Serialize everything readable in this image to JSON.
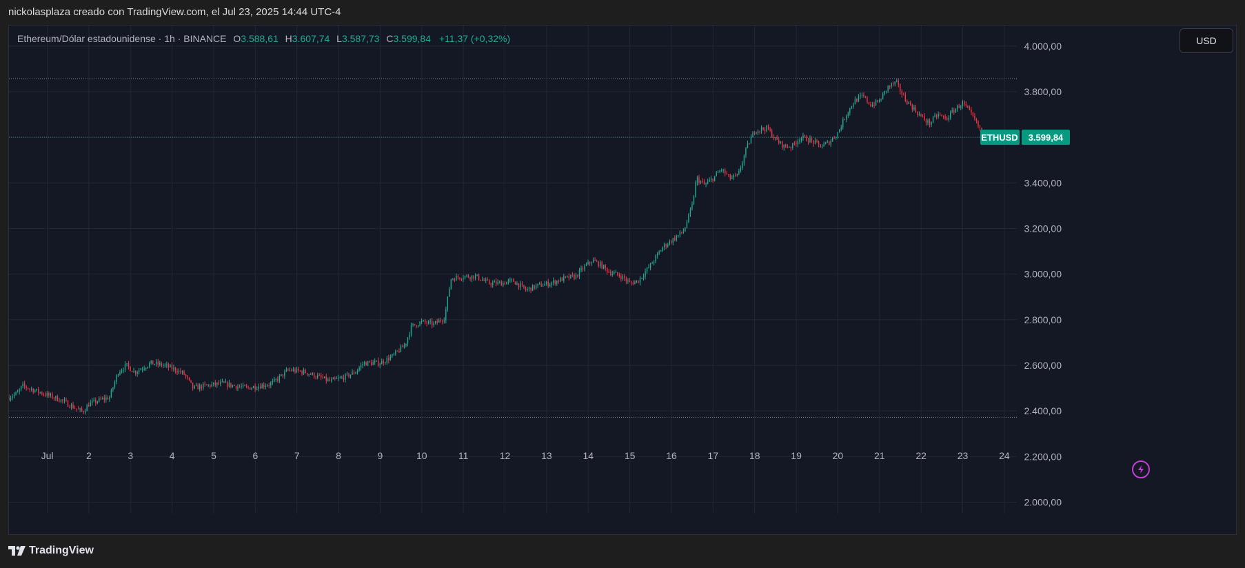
{
  "header": {
    "attribution": "nickolasplaza creado con TradingView.com, el Jul 23, 2025 14:44 UTC-4"
  },
  "legend": {
    "symbol_desc": "Ethereum/Dólar estadounidense · 1h · BINANCE",
    "open_label": "O",
    "open_value": "3.588,61",
    "high_label": "H",
    "high_value": "3.607,74",
    "low_label": "L",
    "low_value": "3.587,73",
    "close_label": "C",
    "close_value": "3.599,84",
    "change": "+11,37 (+0,32%)"
  },
  "currency_button": "USD",
  "price_tag": {
    "symbol": "ETHUSD",
    "price": "3.599,84"
  },
  "footer": {
    "brand": "TradingView"
  },
  "icons": {
    "alert": "lightning-icon",
    "logo": "tradingview-logo-icon"
  },
  "colors": {
    "up": "#22ab94",
    "down": "#f23645",
    "background": "#141824",
    "grid": "#232735",
    "accent_alert": "#c63dd8"
  },
  "chart_data": {
    "type": "candlestick",
    "symbol": "ETHUSD",
    "interval": "1h",
    "exchange": "BINANCE",
    "ylim": [
      1950,
      4090
    ],
    "y_ticks": [
      "4.000,00",
      "3.800,00",
      "3.600,00",
      "3.400,00",
      "3.200,00",
      "3.000,00",
      "2.800,00",
      "2.600,00",
      "2.400,00",
      "2.200,00",
      "2.000,00"
    ],
    "y_tick_values": [
      4000,
      3800,
      3600,
      3400,
      3200,
      3000,
      2800,
      2600,
      2400,
      2200,
      2000
    ],
    "x_ticks": [
      "Jul",
      "2",
      "3",
      "4",
      "5",
      "6",
      "7",
      "8",
      "9",
      "10",
      "11",
      "12",
      "13",
      "14",
      "15",
      "16",
      "17",
      "18",
      "19",
      "20",
      "21",
      "22",
      "23",
      "24"
    ],
    "x_tick_days": [
      1,
      2,
      3,
      4,
      5,
      6,
      7,
      8,
      9,
      10,
      11,
      12,
      13,
      14,
      15,
      16,
      17,
      18,
      19,
      20,
      21,
      22,
      23,
      24
    ],
    "x_range_days": [
      0.08,
      24.3
    ],
    "reference_lines": [
      3857,
      3600,
      2372
    ],
    "last_price": 3599.84,
    "anchors": [
      [
        0.08,
        2460
      ],
      [
        0.3,
        2480
      ],
      [
        0.4,
        2510
      ],
      [
        0.7,
        2490
      ],
      [
        1.0,
        2470
      ],
      [
        1.3,
        2450
      ],
      [
        1.6,
        2420
      ],
      [
        1.85,
        2395
      ],
      [
        2.0,
        2430
      ],
      [
        2.3,
        2450
      ],
      [
        2.5,
        2460
      ],
      [
        2.7,
        2570
      ],
      [
        2.9,
        2600
      ],
      [
        3.1,
        2570
      ],
      [
        3.3,
        2590
      ],
      [
        3.5,
        2610
      ],
      [
        3.8,
        2600
      ],
      [
        4.1,
        2580
      ],
      [
        4.3,
        2560
      ],
      [
        4.5,
        2500
      ],
      [
        4.8,
        2510
      ],
      [
        5.2,
        2520
      ],
      [
        5.5,
        2510
      ],
      [
        5.8,
        2500
      ],
      [
        6.1,
        2510
      ],
      [
        6.4,
        2520
      ],
      [
        6.6,
        2550
      ],
      [
        6.8,
        2580
      ],
      [
        7.2,
        2570
      ],
      [
        7.5,
        2550
      ],
      [
        7.8,
        2530
      ],
      [
        8.1,
        2545
      ],
      [
        8.4,
        2570
      ],
      [
        8.6,
        2610
      ],
      [
        9.0,
        2610
      ],
      [
        9.3,
        2640
      ],
      [
        9.6,
        2690
      ],
      [
        9.75,
        2770
      ],
      [
        10.0,
        2790
      ],
      [
        10.3,
        2780
      ],
      [
        10.55,
        2810
      ],
      [
        10.7,
        2980
      ],
      [
        11.0,
        2990
      ],
      [
        11.3,
        2990
      ],
      [
        11.6,
        2960
      ],
      [
        11.9,
        2960
      ],
      [
        12.2,
        2970
      ],
      [
        12.5,
        2930
      ],
      [
        12.8,
        2950
      ],
      [
        13.1,
        2960
      ],
      [
        13.4,
        2980
      ],
      [
        13.7,
        2990
      ],
      [
        13.9,
        3030
      ],
      [
        14.1,
        3060
      ],
      [
        14.3,
        3040
      ],
      [
        14.5,
        3010
      ],
      [
        14.8,
        2990
      ],
      [
        15.0,
        2960
      ],
      [
        15.2,
        2970
      ],
      [
        15.5,
        3040
      ],
      [
        15.8,
        3120
      ],
      [
        16.1,
        3160
      ],
      [
        16.3,
        3190
      ],
      [
        16.5,
        3300
      ],
      [
        16.6,
        3420
      ],
      [
        16.8,
        3390
      ],
      [
        17.0,
        3420
      ],
      [
        17.2,
        3460
      ],
      [
        17.4,
        3420
      ],
      [
        17.6,
        3430
      ],
      [
        17.8,
        3550
      ],
      [
        18.0,
        3630
      ],
      [
        18.3,
        3640
      ],
      [
        18.5,
        3590
      ],
      [
        18.7,
        3560
      ],
      [
        18.9,
        3560
      ],
      [
        19.1,
        3600
      ],
      [
        19.3,
        3590
      ],
      [
        19.6,
        3560
      ],
      [
        19.8,
        3580
      ],
      [
        20.0,
        3620
      ],
      [
        20.2,
        3700
      ],
      [
        20.4,
        3760
      ],
      [
        20.6,
        3780
      ],
      [
        20.8,
        3740
      ],
      [
        21.0,
        3760
      ],
      [
        21.2,
        3820
      ],
      [
        21.4,
        3840
      ],
      [
        21.6,
        3770
      ],
      [
        21.8,
        3730
      ],
      [
        22.0,
        3690
      ],
      [
        22.2,
        3660
      ],
      [
        22.4,
        3700
      ],
      [
        22.6,
        3680
      ],
      [
        22.8,
        3720
      ],
      [
        23.0,
        3750
      ],
      [
        23.2,
        3700
      ],
      [
        23.4,
        3640
      ],
      [
        23.55,
        3600
      ]
    ]
  }
}
